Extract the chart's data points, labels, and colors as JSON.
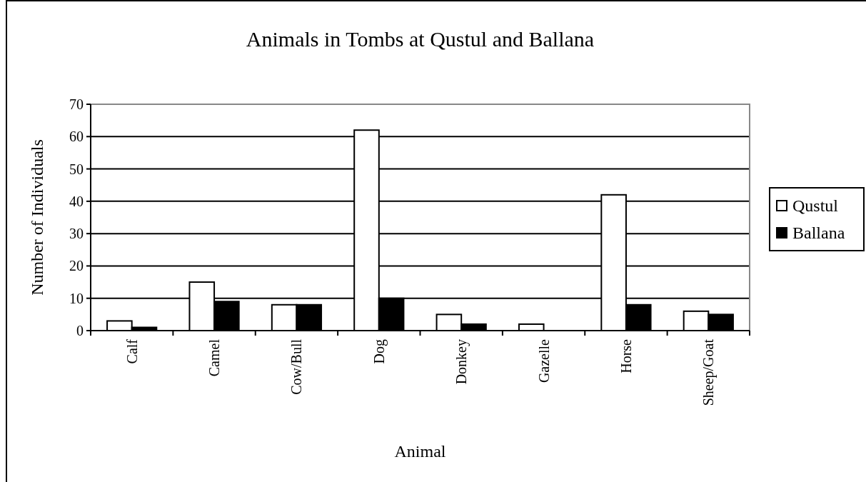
{
  "chart_data": {
    "type": "bar",
    "title": "Animals in Tombs at Qustul and Ballana",
    "xlabel": "Animal",
    "ylabel": "Number of Individuals",
    "categories": [
      "Calf",
      "Camel",
      "Cow/Bull",
      "Dog",
      "Donkey",
      "Gazelle",
      "Horse",
      "Sheep/Goat"
    ],
    "series": [
      {
        "name": "Qustul",
        "color": "#ffffff",
        "values": [
          3,
          15,
          8,
          62,
          5,
          2,
          42,
          6
        ]
      },
      {
        "name": "Ballana",
        "color": "#000000",
        "values": [
          1,
          9,
          8,
          10,
          2,
          0,
          8,
          5
        ]
      }
    ],
    "ylim": [
      0,
      70
    ],
    "yticks": [
      0,
      10,
      20,
      30,
      40,
      50,
      60,
      70
    ],
    "grid": "y",
    "legend": "right"
  }
}
